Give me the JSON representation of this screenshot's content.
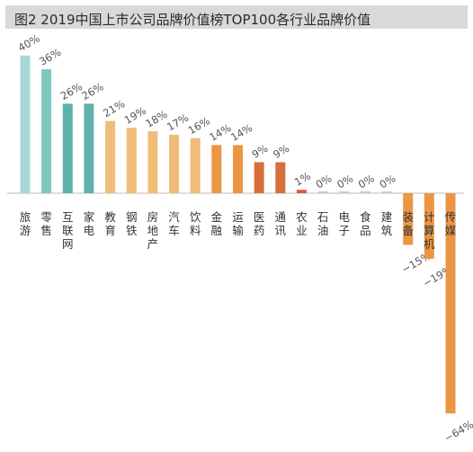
{
  "title": "图2  2019中国上市公司品牌价值榜TOP100各行业品牌价值",
  "chart_data": {
    "type": "bar",
    "title": "图2  2019中国上市公司品牌价值榜TOP100各行业品牌价值",
    "xlabel": "",
    "ylabel": "",
    "ylim": [
      -64,
      40
    ],
    "grid": false,
    "legend": "none",
    "categories": [
      "旅游",
      "零售",
      "互联网",
      "家电",
      "教育",
      "钢铁",
      "房地产",
      "汽车",
      "饮料",
      "金融",
      "运输",
      "医药",
      "通讯",
      "农业",
      "石油",
      "电子",
      "食品",
      "建筑",
      "装备",
      "计算机",
      "传媒"
    ],
    "values": [
      40,
      36,
      26,
      26,
      21,
      19,
      18,
      17,
      16,
      14,
      14,
      9,
      9,
      1,
      0,
      0,
      0,
      0,
      -15,
      -19,
      -64
    ],
    "value_labels": [
      "40%",
      "36%",
      "26%",
      "26%",
      "21%",
      "19%",
      "18%",
      "17%",
      "16%",
      "14%",
      "14%",
      "9%",
      "9%",
      "1%",
      "0%",
      "0%",
      "0%",
      "0%",
      "−15%",
      "−19%",
      "−64%"
    ],
    "colors": [
      "#a8d8d3",
      "#7dc7bf",
      "#5fb2ab",
      "#5fb2ab",
      "#f1bc79",
      "#f1bc79",
      "#f1bc79",
      "#f1bc79",
      "#f1bc79",
      "#ec9645",
      "#ec9645",
      "#d86f3a",
      "#d86f3a",
      "#e05a3a",
      "#c9c9c9",
      "#c9c9c9",
      "#c9c9c9",
      "#c9c9c9",
      "#ec9645",
      "#ec9645",
      "#ec9645"
    ]
  }
}
